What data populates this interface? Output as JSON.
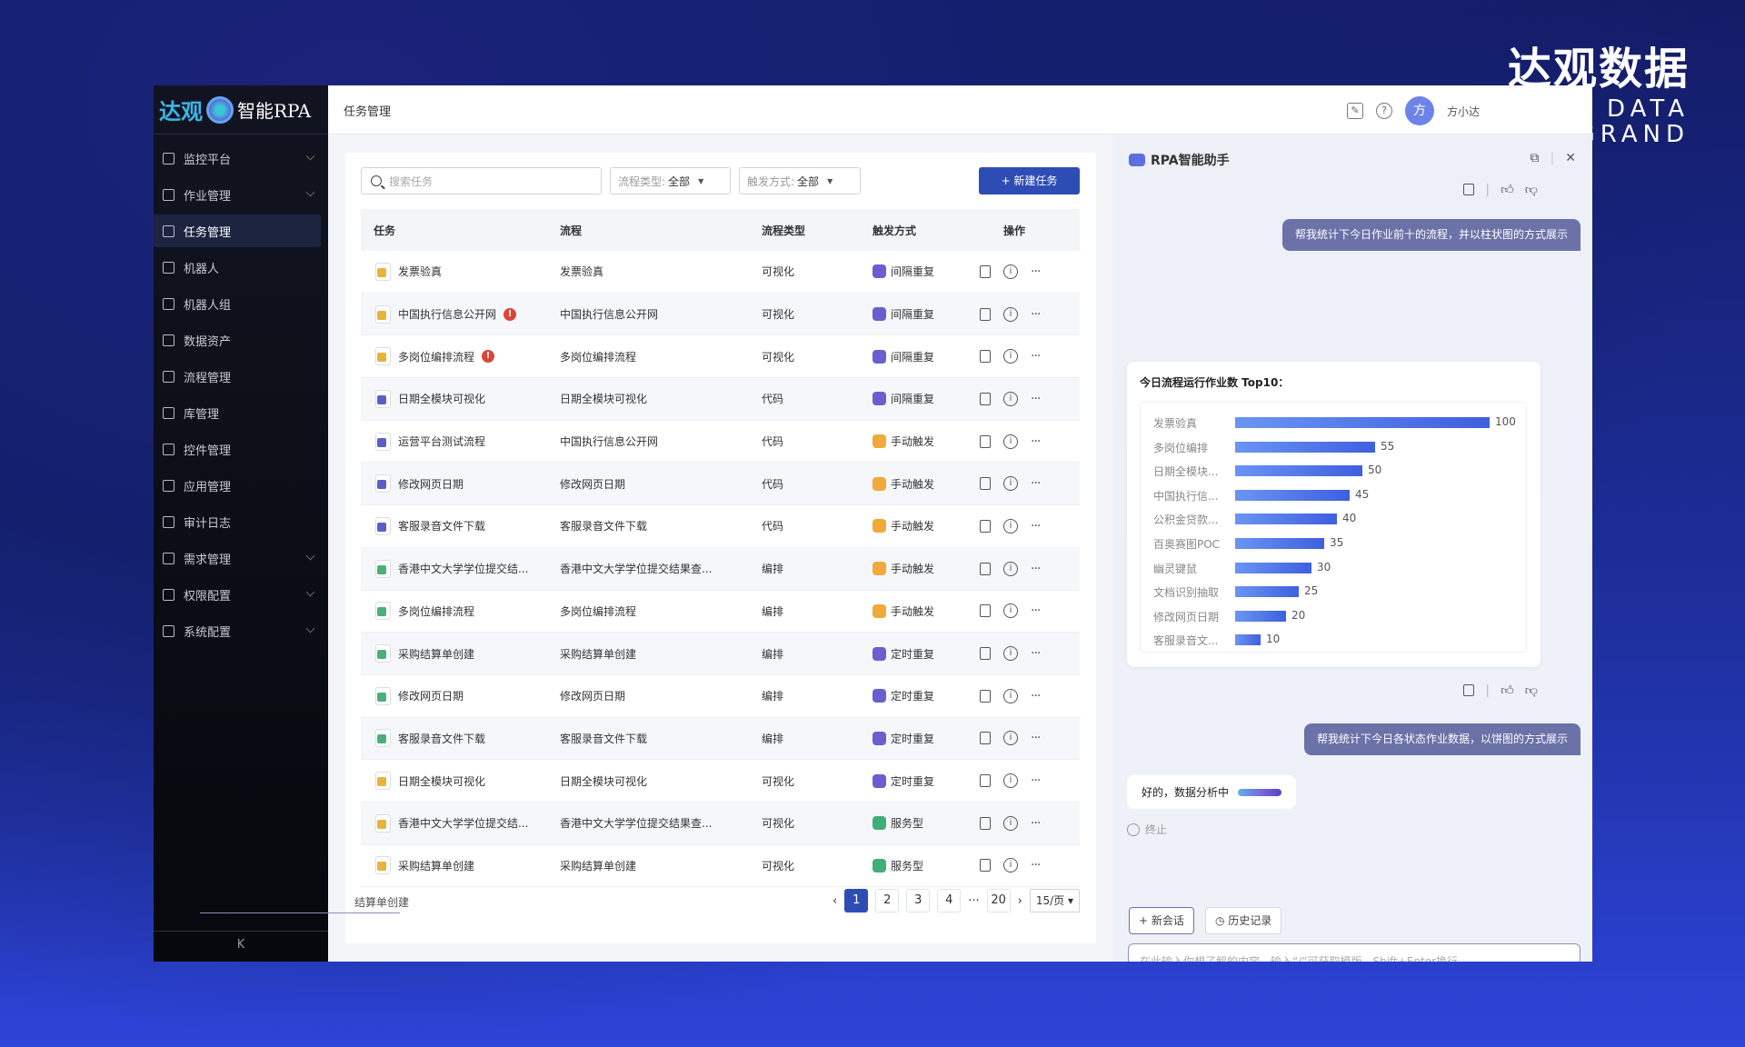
{
  "brand": {
    "cn": "达观数据",
    "en": "DATA GRAND"
  },
  "logo": {
    "text1": "达观",
    "text2": "智能RPA"
  },
  "sidebar": {
    "items": [
      {
        "label": "监控平台",
        "chevron": true
      },
      {
        "label": "作业管理",
        "chevron": true
      },
      {
        "label": "任务管理",
        "active": true
      },
      {
        "label": "机器人"
      },
      {
        "label": "机器人组"
      },
      {
        "label": "数据资产"
      },
      {
        "label": "流程管理"
      },
      {
        "label": "库管理"
      },
      {
        "label": "控件管理"
      },
      {
        "label": "应用管理"
      },
      {
        "label": "审计日志"
      },
      {
        "label": "需求管理",
        "chevron": true
      },
      {
        "label": "权限配置",
        "chevron": true
      },
      {
        "label": "系统配置",
        "chevron": true
      }
    ],
    "collapse": "K"
  },
  "header": {
    "title": "任务管理",
    "avatar": "方",
    "user": "方小达"
  },
  "toolbar": {
    "search_placeholder": "搜索任务",
    "filter1_label": "流程类型:",
    "filter1_value": "全部",
    "filter2_label": "触发方式:",
    "filter2_value": "全部",
    "new_task": "+ 新建任务"
  },
  "table": {
    "columns": [
      "任务",
      "流程",
      "流程类型",
      "触发方式",
      "操作"
    ],
    "rows": [
      {
        "task": "发票验真",
        "flow": "发票验真",
        "type": "可视化",
        "trigger": "间隔重复"
      },
      {
        "task": "中国执行信息公开网",
        "warn": true,
        "flow": "中国执行信息公开网",
        "type": "可视化",
        "trigger": "间隔重复"
      },
      {
        "task": "多岗位编排流程",
        "warn": true,
        "flow": "多岗位编排流程",
        "type": "可视化",
        "trigger": "间隔重复"
      },
      {
        "task": "日期全模块可视化",
        "flow": "日期全模块可视化",
        "type": "代码",
        "trigger": "间隔重复"
      },
      {
        "task": "运营平台测试流程",
        "flow": "中国执行信息公开网",
        "type": "代码",
        "trigger": "手动触发"
      },
      {
        "task": "修改网页日期",
        "flow": "修改网页日期",
        "type": "代码",
        "trigger": "手动触发"
      },
      {
        "task": "客服录音文件下载",
        "flow": "客服录音文件下载",
        "type": "代码",
        "trigger": "手动触发"
      },
      {
        "task": "香港中文大学学位提交结...",
        "flow": "香港中文大学学位提交结果查...",
        "type": "编排",
        "trigger": "手动触发"
      },
      {
        "task": "多岗位编排流程",
        "flow": "多岗位编排流程",
        "type": "编排",
        "trigger": "手动触发"
      },
      {
        "task": "采购结算单创建",
        "flow": "采购结算单创建",
        "type": "编排",
        "trigger": "定时重复"
      },
      {
        "task": "修改网页日期",
        "flow": "修改网页日期",
        "type": "编排",
        "trigger": "定时重复"
      },
      {
        "task": "客服录音文件下载",
        "flow": "客服录音文件下载",
        "type": "编排",
        "trigger": "定时重复"
      },
      {
        "task": "日期全模块可视化",
        "flow": "日期全模块可视化",
        "type": "可视化",
        "trigger": "定时重复"
      },
      {
        "task": "香港中文大学学位提交结...",
        "flow": "香港中文大学学位提交结果查...",
        "type": "可视化",
        "trigger": "服务型"
      },
      {
        "task": "采购结算单创建",
        "flow": "采购结算单创建",
        "type": "可视化",
        "trigger": "服务型"
      }
    ],
    "ghost_text": "结算单创建"
  },
  "pagination": {
    "pages": [
      "1",
      "2",
      "3",
      "4",
      "···",
      "20"
    ],
    "current": "1",
    "page_size": "15/页 ▾",
    "prev": "‹",
    "next": "›"
  },
  "colors": {
    "type_可视化": "#e8b33a",
    "type_代码": "#5a5fc8",
    "type_编排": "#4caf7a",
    "trig_间隔重复": "#6a5fd0",
    "trig_定时重复": "#6a5fd0",
    "trig_手动触发": "#f2a93b",
    "trig_服务型": "#3fae79",
    "primary": "#2e4db4"
  },
  "chat": {
    "title": "RPA智能助手",
    "msg1": "帮我统计下今日作业前十的流程，并以柱状图的方式展示",
    "msg2": "帮我统计下今日各状态作业数据，以饼图的方式展示",
    "reply": "好的，数据分析中",
    "stop": "终止",
    "new_chat": "+ 新会话",
    "history": "◷ 历史记录",
    "input_placeholder": "在此输入你想了解的内容，输入“/”可获取模版，Shift+Enter换行",
    "send": "➤"
  },
  "chart_data": {
    "type": "bar",
    "orientation": "horizontal",
    "title": "今日流程运行作业数 Top10：",
    "categories": [
      "发票验真",
      "多岗位编排",
      "日期全模块...",
      "中国执行信...",
      "公积金贷款...",
      "百奥赛图POC",
      "幽灵键鼠",
      "文档识别抽取",
      "修改网页日期",
      "客服录音文..."
    ],
    "values": [
      100,
      55,
      50,
      45,
      40,
      35,
      30,
      25,
      20,
      10
    ]
  }
}
